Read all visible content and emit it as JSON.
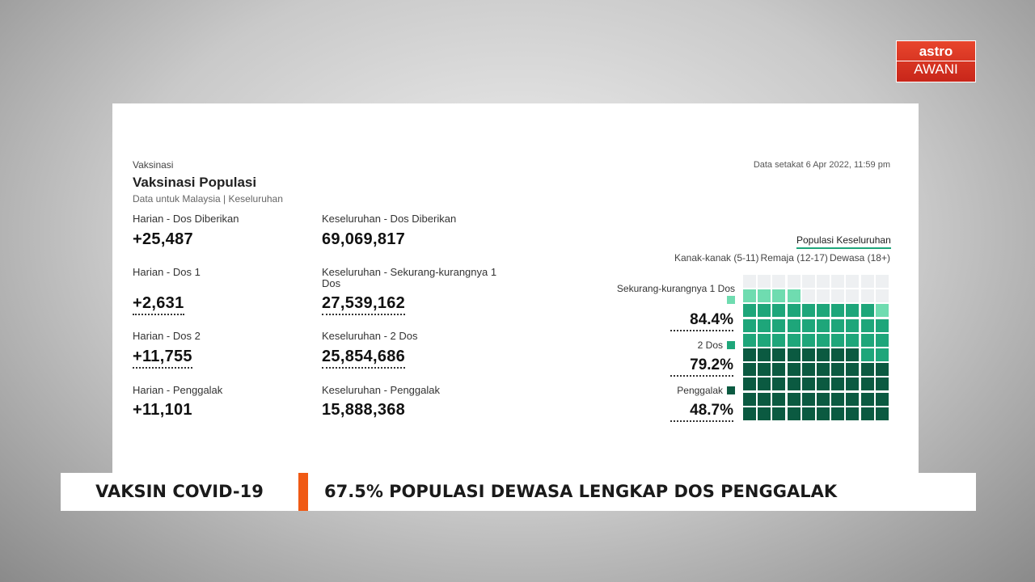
{
  "logo": {
    "top": "astro",
    "bottom": "AWANI"
  },
  "card": {
    "section": "Vaksinasi",
    "title": "Vaksinasi Populasi",
    "subtitle": "Data untuk Malaysia | Keseluruhan",
    "timestamp": "Data setakat 6 Apr 2022, 11:59 pm",
    "daily": [
      {
        "label": "Harian - Dos Diberikan",
        "value": "+25,487"
      },
      {
        "label": "Harian - Dos 1",
        "value": "+2,631"
      },
      {
        "label": "Harian - Dos 2",
        "value": "+11,755"
      },
      {
        "label": "Harian - Penggalak",
        "value": "+11,101"
      }
    ],
    "total": [
      {
        "label": "Keseluruhan - Dos Diberikan",
        "value": "69,069,817"
      },
      {
        "label": "Keseluruhan - Sekurang-kurangnya 1 Dos",
        "value": "27,539,162"
      },
      {
        "label": "Keseluruhan - 2 Dos",
        "value": "25,854,686"
      },
      {
        "label": "Keseluruhan - Penggalak",
        "value": "15,888,368"
      }
    ],
    "waffle": {
      "title": "Populasi Keseluruhan",
      "groups": [
        "Kanak-kanak (5-11)",
        "Remaja (12-17)",
        "Dewasa (18+)"
      ],
      "legend": [
        {
          "label": "Sekurang-kurangnya 1 Dos",
          "value": 84.4,
          "value_label": "84.4%",
          "color": "#6fdcb0"
        },
        {
          "label": "2 Dos",
          "value": 79.2,
          "value_label": "79.2%",
          "color": "#1ea67a"
        },
        {
          "label": "Penggalak",
          "value": 48.7,
          "value_label": "48.7%",
          "color": "#0b5a41"
        }
      ]
    }
  },
  "ticker": {
    "topic": "VAKSIN COVID-19",
    "headline": "67.5% POPULASI DEWASA LENGKAP DOS PENGGALAK"
  }
}
